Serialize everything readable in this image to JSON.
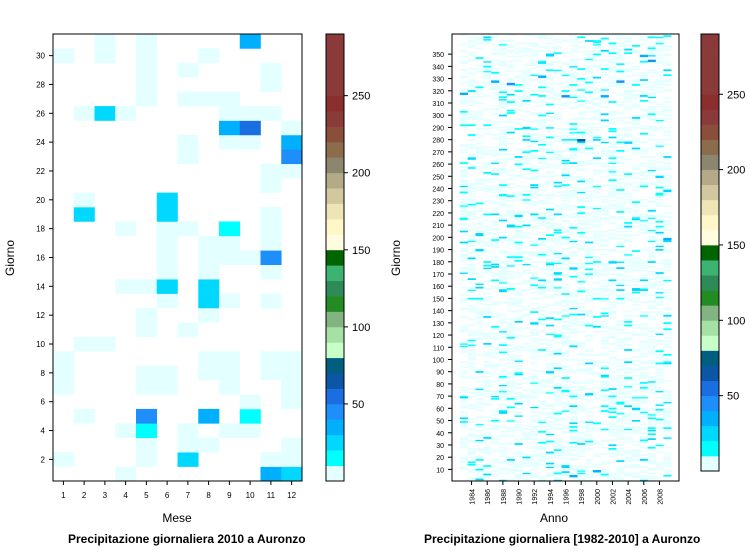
{
  "chart_data": [
    {
      "type": "heatmap",
      "title": "Precipitazione giornaliera 2010 a Auronzo",
      "xlabel": "Mese",
      "ylabel": "Giorno",
      "x_categories": [
        "1",
        "2",
        "3",
        "4",
        "5",
        "6",
        "7",
        "8",
        "9",
        "10",
        "11",
        "12"
      ],
      "y_range": [
        1,
        31
      ],
      "y_ticks": [
        2,
        4,
        6,
        8,
        10,
        12,
        14,
        16,
        18,
        20,
        22,
        24,
        26,
        28,
        30
      ],
      "colorbar": {
        "ticks": [
          50,
          100,
          150,
          200,
          250
        ],
        "range": [
          0,
          290
        ],
        "band_width": 10,
        "colors": [
          "#e4ffff",
          "#00ffff",
          "#00d8ff",
          "#00b0ff",
          "#1e8ffa",
          "#1a6edf",
          "#0d56a6",
          "#005f7f",
          "#c8ffc8",
          "#a5e0a5",
          "#82b482",
          "#228b22",
          "#2e8b57",
          "#3cb371",
          "#006400",
          "#fffde0",
          "#fff7c8",
          "#eee4b5",
          "#d2c8a0",
          "#b4aa87",
          "#8c866e",
          "#8b6d4b",
          "#8b4e3b",
          "#8b3a3a",
          "#8b2e2e",
          "#8b3a3a",
          "#8b3a3a",
          "#8b3a3a",
          "#8b3a3a"
        ]
      },
      "cells": [
        {
          "month": 1,
          "day": 2,
          "value": 4
        },
        {
          "month": 1,
          "day": 7,
          "value": 3
        },
        {
          "month": 1,
          "day": 8,
          "value": 4
        },
        {
          "month": 1,
          "day": 9,
          "value": 3
        },
        {
          "month": 1,
          "day": 30,
          "value": 3
        },
        {
          "month": 2,
          "day": 5,
          "value": 4
        },
        {
          "month": 2,
          "day": 10,
          "value": 3
        },
        {
          "month": 2,
          "day": 19,
          "value": 28
        },
        {
          "month": 2,
          "day": 20,
          "value": 4
        },
        {
          "month": 2,
          "day": 26,
          "value": 3
        },
        {
          "month": 3,
          "day": 10,
          "value": 3
        },
        {
          "month": 3,
          "day": 26,
          "value": 20
        },
        {
          "month": 3,
          "day": 30,
          "value": 4
        },
        {
          "month": 3,
          "day": 31,
          "value": 3
        },
        {
          "month": 4,
          "day": 1,
          "value": 3
        },
        {
          "month": 4,
          "day": 4,
          "value": 4
        },
        {
          "month": 4,
          "day": 14,
          "value": 3
        },
        {
          "month": 4,
          "day": 18,
          "value": 4
        },
        {
          "month": 4,
          "day": 26,
          "value": 3
        },
        {
          "month": 5,
          "day": 2,
          "value": 3
        },
        {
          "month": 5,
          "day": 3,
          "value": 4
        },
        {
          "month": 5,
          "day": 4,
          "value": 18
        },
        {
          "month": 5,
          "day": 5,
          "value": 45
        },
        {
          "month": 5,
          "day": 7,
          "value": 4
        },
        {
          "month": 5,
          "day": 8,
          "value": 3
        },
        {
          "month": 5,
          "day": 11,
          "value": 4
        },
        {
          "month": 5,
          "day": 12,
          "value": 3
        },
        {
          "month": 5,
          "day": 14,
          "value": 3
        },
        {
          "month": 5,
          "day": 27,
          "value": 3
        },
        {
          "month": 5,
          "day": 28,
          "value": 3
        },
        {
          "month": 5,
          "day": 29,
          "value": 3
        },
        {
          "month": 5,
          "day": 30,
          "value": 3
        },
        {
          "month": 5,
          "day": 31,
          "value": 4
        },
        {
          "month": 6,
          "day": 7,
          "value": 3
        },
        {
          "month": 6,
          "day": 8,
          "value": 3
        },
        {
          "month": 6,
          "day": 13,
          "value": 4
        },
        {
          "month": 6,
          "day": 14,
          "value": 25
        },
        {
          "month": 6,
          "day": 15,
          "value": 3
        },
        {
          "month": 6,
          "day": 16,
          "value": 3
        },
        {
          "month": 6,
          "day": 17,
          "value": 4
        },
        {
          "month": 6,
          "day": 18,
          "value": 3
        },
        {
          "month": 6,
          "day": 19,
          "value": 22
        },
        {
          "month": 6,
          "day": 20,
          "value": 24
        },
        {
          "month": 7,
          "day": 2,
          "value": 28
        },
        {
          "month": 7,
          "day": 3,
          "value": 4
        },
        {
          "month": 7,
          "day": 4,
          "value": 3
        },
        {
          "month": 7,
          "day": 11,
          "value": 4
        },
        {
          "month": 7,
          "day": 18,
          "value": 3
        },
        {
          "month": 7,
          "day": 23,
          "value": 3
        },
        {
          "month": 7,
          "day": 24,
          "value": 4
        },
        {
          "month": 7,
          "day": 27,
          "value": 3
        },
        {
          "month": 7,
          "day": 29,
          "value": 3
        },
        {
          "month": 8,
          "day": 3,
          "value": 3
        },
        {
          "month": 8,
          "day": 5,
          "value": 35
        },
        {
          "month": 8,
          "day": 8,
          "value": 4
        },
        {
          "month": 8,
          "day": 9,
          "value": 3
        },
        {
          "month": 8,
          "day": 12,
          "value": 3
        },
        {
          "month": 8,
          "day": 13,
          "value": 22
        },
        {
          "month": 8,
          "day": 14,
          "value": 24
        },
        {
          "month": 8,
          "day": 15,
          "value": 3
        },
        {
          "month": 8,
          "day": 16,
          "value": 4
        },
        {
          "month": 8,
          "day": 17,
          "value": 3
        },
        {
          "month": 8,
          "day": 27,
          "value": 3
        },
        {
          "month": 8,
          "day": 30,
          "value": 4
        },
        {
          "month": 9,
          "day": 4,
          "value": 4
        },
        {
          "month": 9,
          "day": 7,
          "value": 3
        },
        {
          "month": 9,
          "day": 8,
          "value": 3
        },
        {
          "month": 9,
          "day": 9,
          "value": 3
        },
        {
          "month": 9,
          "day": 13,
          "value": 4
        },
        {
          "month": 9,
          "day": 16,
          "value": 3
        },
        {
          "month": 9,
          "day": 17,
          "value": 3
        },
        {
          "month": 9,
          "day": 18,
          "value": 19
        },
        {
          "month": 9,
          "day": 24,
          "value": 3
        },
        {
          "month": 9,
          "day": 25,
          "value": 36
        },
        {
          "month": 9,
          "day": 26,
          "value": 3
        },
        {
          "month": 9,
          "day": 27,
          "value": 4
        },
        {
          "month": 10,
          "day": 4,
          "value": 4
        },
        {
          "month": 10,
          "day": 5,
          "value": 18
        },
        {
          "month": 10,
          "day": 6,
          "value": 3
        },
        {
          "month": 10,
          "day": 16,
          "value": 3
        },
        {
          "month": 10,
          "day": 24,
          "value": 3
        },
        {
          "month": 10,
          "day": 25,
          "value": 52
        },
        {
          "month": 10,
          "day": 26,
          "value": 3
        },
        {
          "month": 10,
          "day": 31,
          "value": 34
        },
        {
          "month": 11,
          "day": 1,
          "value": 36
        },
        {
          "month": 11,
          "day": 2,
          "value": 3
        },
        {
          "month": 11,
          "day": 8,
          "value": 3
        },
        {
          "month": 11,
          "day": 9,
          "value": 4
        },
        {
          "month": 11,
          "day": 13,
          "value": 3
        },
        {
          "month": 11,
          "day": 15,
          "value": 4
        },
        {
          "month": 11,
          "day": 16,
          "value": 42
        },
        {
          "month": 11,
          "day": 17,
          "value": 3
        },
        {
          "month": 11,
          "day": 18,
          "value": 3
        },
        {
          "month": 11,
          "day": 19,
          "value": 4
        },
        {
          "month": 11,
          "day": 21,
          "value": 3
        },
        {
          "month": 11,
          "day": 22,
          "value": 3
        },
        {
          "month": 11,
          "day": 26,
          "value": 3
        },
        {
          "month": 11,
          "day": 28,
          "value": 3
        },
        {
          "month": 11,
          "day": 29,
          "value": 4
        },
        {
          "month": 12,
          "day": 1,
          "value": 22
        },
        {
          "month": 12,
          "day": 2,
          "value": 3
        },
        {
          "month": 12,
          "day": 3,
          "value": 4
        },
        {
          "month": 12,
          "day": 6,
          "value": 3
        },
        {
          "month": 12,
          "day": 7,
          "value": 3
        },
        {
          "month": 12,
          "day": 8,
          "value": 4
        },
        {
          "month": 12,
          "day": 9,
          "value": 3
        },
        {
          "month": 12,
          "day": 22,
          "value": 3
        },
        {
          "month": 12,
          "day": 23,
          "value": 45
        },
        {
          "month": 12,
          "day": 24,
          "value": 38
        },
        {
          "month": 12,
          "day": 25,
          "value": 3
        }
      ]
    },
    {
      "type": "heatmap",
      "title": "Precipitazione giornaliera [1982-2010] a Auronzo",
      "xlabel": "Anno",
      "ylabel": "Giorno",
      "x_range": [
        1982,
        2010
      ],
      "x_ticks": [
        1984,
        1986,
        1988,
        1990,
        1992,
        1994,
        1996,
        1998,
        2000,
        2002,
        2004,
        2006,
        2008
      ],
      "y_range": [
        1,
        366
      ],
      "y_ticks": [
        10,
        20,
        30,
        40,
        50,
        60,
        70,
        80,
        90,
        100,
        110,
        120,
        130,
        140,
        150,
        160,
        170,
        180,
        190,
        200,
        210,
        220,
        230,
        240,
        250,
        260,
        270,
        280,
        290,
        300,
        310,
        320,
        330,
        340,
        350
      ],
      "colorbar": {
        "ticks": [
          50,
          100,
          150,
          200,
          250
        ],
        "range": [
          0,
          290
        ],
        "band_width": 10
      },
      "notable_cells": [
        {
          "year": 1983,
          "day": 318,
          "value": 30
        },
        {
          "year": 1984,
          "day": 265,
          "value": 25
        },
        {
          "year": 1985,
          "day": 190,
          "value": 20
        },
        {
          "year": 1987,
          "day": 328,
          "value": 35
        },
        {
          "year": 1988,
          "day": 57,
          "value": 28
        },
        {
          "year": 1988,
          "day": 235,
          "value": 18
        },
        {
          "year": 1989,
          "day": 326,
          "value": 40
        },
        {
          "year": 1990,
          "day": 218,
          "value": 22
        },
        {
          "year": 1991,
          "day": 290,
          "value": 28
        },
        {
          "year": 1992,
          "day": 130,
          "value": 25
        },
        {
          "year": 1993,
          "day": 332,
          "value": 30
        },
        {
          "year": 1994,
          "day": 90,
          "value": 20
        },
        {
          "year": 1995,
          "day": 166,
          "value": 25
        },
        {
          "year": 1996,
          "day": 316,
          "value": 45
        },
        {
          "year": 1997,
          "day": 5,
          "value": 30
        },
        {
          "year": 1997,
          "day": 175,
          "value": 22
        },
        {
          "year": 1998,
          "day": 280,
          "value": 60
        },
        {
          "year": 1999,
          "day": 72,
          "value": 25
        },
        {
          "year": 2000,
          "day": 9,
          "value": 35
        },
        {
          "year": 2001,
          "day": 316,
          "value": 35
        },
        {
          "year": 2002,
          "day": 180,
          "value": 22
        },
        {
          "year": 2003,
          "day": 328,
          "value": 40
        },
        {
          "year": 2004,
          "day": 278,
          "value": 25
        },
        {
          "year": 2005,
          "day": 60,
          "value": 20
        },
        {
          "year": 2006,
          "day": 349,
          "value": 30
        },
        {
          "year": 2007,
          "day": 345,
          "value": 40
        },
        {
          "year": 2008,
          "day": 250,
          "value": 25
        },
        {
          "year": 2009,
          "day": 199,
          "value": 30
        }
      ]
    }
  ]
}
